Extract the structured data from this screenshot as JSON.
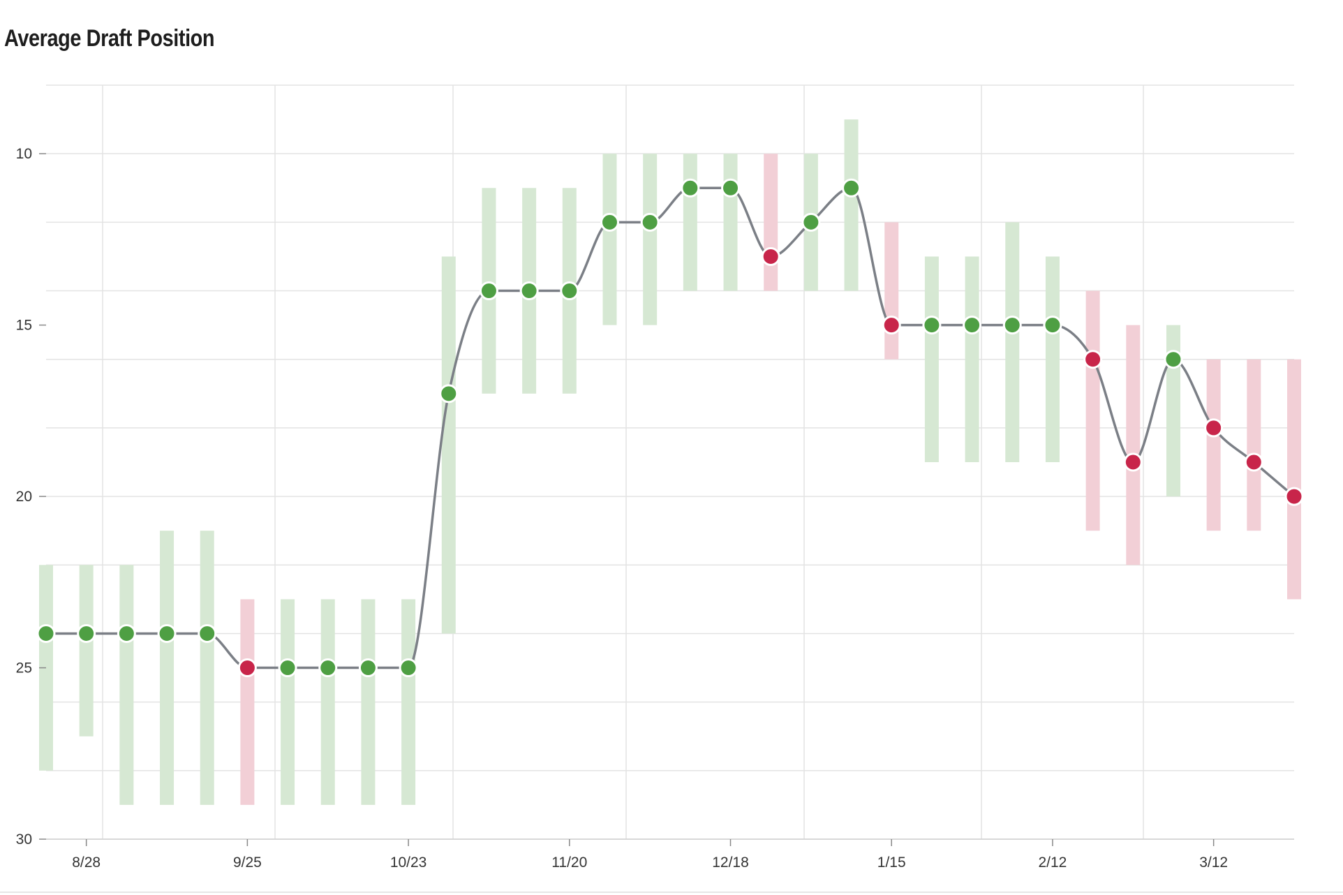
{
  "title": "Average Draft Position",
  "colors": {
    "rise": "#4e9f43",
    "fall": "#c8254a",
    "rise_range": "#d6e8d3",
    "fall_range": "#f2cfd6",
    "line": "#7b7f86",
    "grid": "#e3e3e3"
  },
  "chart_data": {
    "type": "line",
    "title": "Average Draft Position",
    "xlabel": "",
    "ylabel": "",
    "ylim": [
      30,
      8
    ],
    "y_reversed": true,
    "yticks": [
      10,
      15,
      20,
      25,
      30
    ],
    "xticks": [
      {
        "label": "8/28",
        "index": 1
      },
      {
        "label": "9/25",
        "index": 5
      },
      {
        "label": "10/23",
        "index": 9
      },
      {
        "label": "11/20",
        "index": 13
      },
      {
        "label": "12/18",
        "index": 17
      },
      {
        "label": "1/15",
        "index": 21
      },
      {
        "label": "2/12",
        "index": 25
      },
      {
        "label": "3/12",
        "index": 29
      }
    ],
    "grid": true,
    "legend": "none",
    "series": [
      {
        "points": [
          {
            "adp": 24,
            "low": 22,
            "high": 28,
            "trend": "up"
          },
          {
            "adp": 24,
            "low": 22,
            "high": 27,
            "trend": "up"
          },
          {
            "adp": 24,
            "low": 22,
            "high": 29,
            "trend": "up"
          },
          {
            "adp": 24,
            "low": 21,
            "high": 29,
            "trend": "up"
          },
          {
            "adp": 24,
            "low": 21,
            "high": 29,
            "trend": "up"
          },
          {
            "adp": 25,
            "low": 23,
            "high": 29,
            "trend": "down"
          },
          {
            "adp": 25,
            "low": 23,
            "high": 29,
            "trend": "up"
          },
          {
            "adp": 25,
            "low": 23,
            "high": 29,
            "trend": "up"
          },
          {
            "adp": 25,
            "low": 23,
            "high": 29,
            "trend": "up"
          },
          {
            "adp": 25,
            "low": 23,
            "high": 29,
            "trend": "up"
          },
          {
            "adp": 17,
            "low": 13,
            "high": 24,
            "trend": "up"
          },
          {
            "adp": 14,
            "low": 11,
            "high": 17,
            "trend": "up"
          },
          {
            "adp": 14,
            "low": 11,
            "high": 17,
            "trend": "up"
          },
          {
            "adp": 14,
            "low": 11,
            "high": 17,
            "trend": "up"
          },
          {
            "adp": 12,
            "low": 10,
            "high": 15,
            "trend": "up"
          },
          {
            "adp": 12,
            "low": 10,
            "high": 15,
            "trend": "up"
          },
          {
            "adp": 11,
            "low": 10,
            "high": 14,
            "trend": "up"
          },
          {
            "adp": 11,
            "low": 10,
            "high": 14,
            "trend": "up"
          },
          {
            "adp": 13,
            "low": 10,
            "high": 14,
            "trend": "down"
          },
          {
            "adp": 12,
            "low": 10,
            "high": 14,
            "trend": "up"
          },
          {
            "adp": 11,
            "low": 9,
            "high": 14,
            "trend": "up"
          },
          {
            "adp": 15,
            "low": 12,
            "high": 16,
            "trend": "down"
          },
          {
            "adp": 15,
            "low": 13,
            "high": 19,
            "trend": "up"
          },
          {
            "adp": 15,
            "low": 13,
            "high": 19,
            "trend": "up"
          },
          {
            "adp": 15,
            "low": 12,
            "high": 19,
            "trend": "up"
          },
          {
            "adp": 15,
            "low": 13,
            "high": 19,
            "trend": "up"
          },
          {
            "adp": 16,
            "low": 14,
            "high": 21,
            "trend": "down"
          },
          {
            "adp": 19,
            "low": 15,
            "high": 22,
            "trend": "down"
          },
          {
            "adp": 16,
            "low": 15,
            "high": 20,
            "trend": "up"
          },
          {
            "adp": 18,
            "low": 16,
            "high": 21,
            "trend": "down"
          },
          {
            "adp": 19,
            "low": 16,
            "high": 21,
            "trend": "down"
          },
          {
            "adp": 20,
            "low": 16,
            "high": 23,
            "trend": "down"
          }
        ]
      }
    ]
  }
}
